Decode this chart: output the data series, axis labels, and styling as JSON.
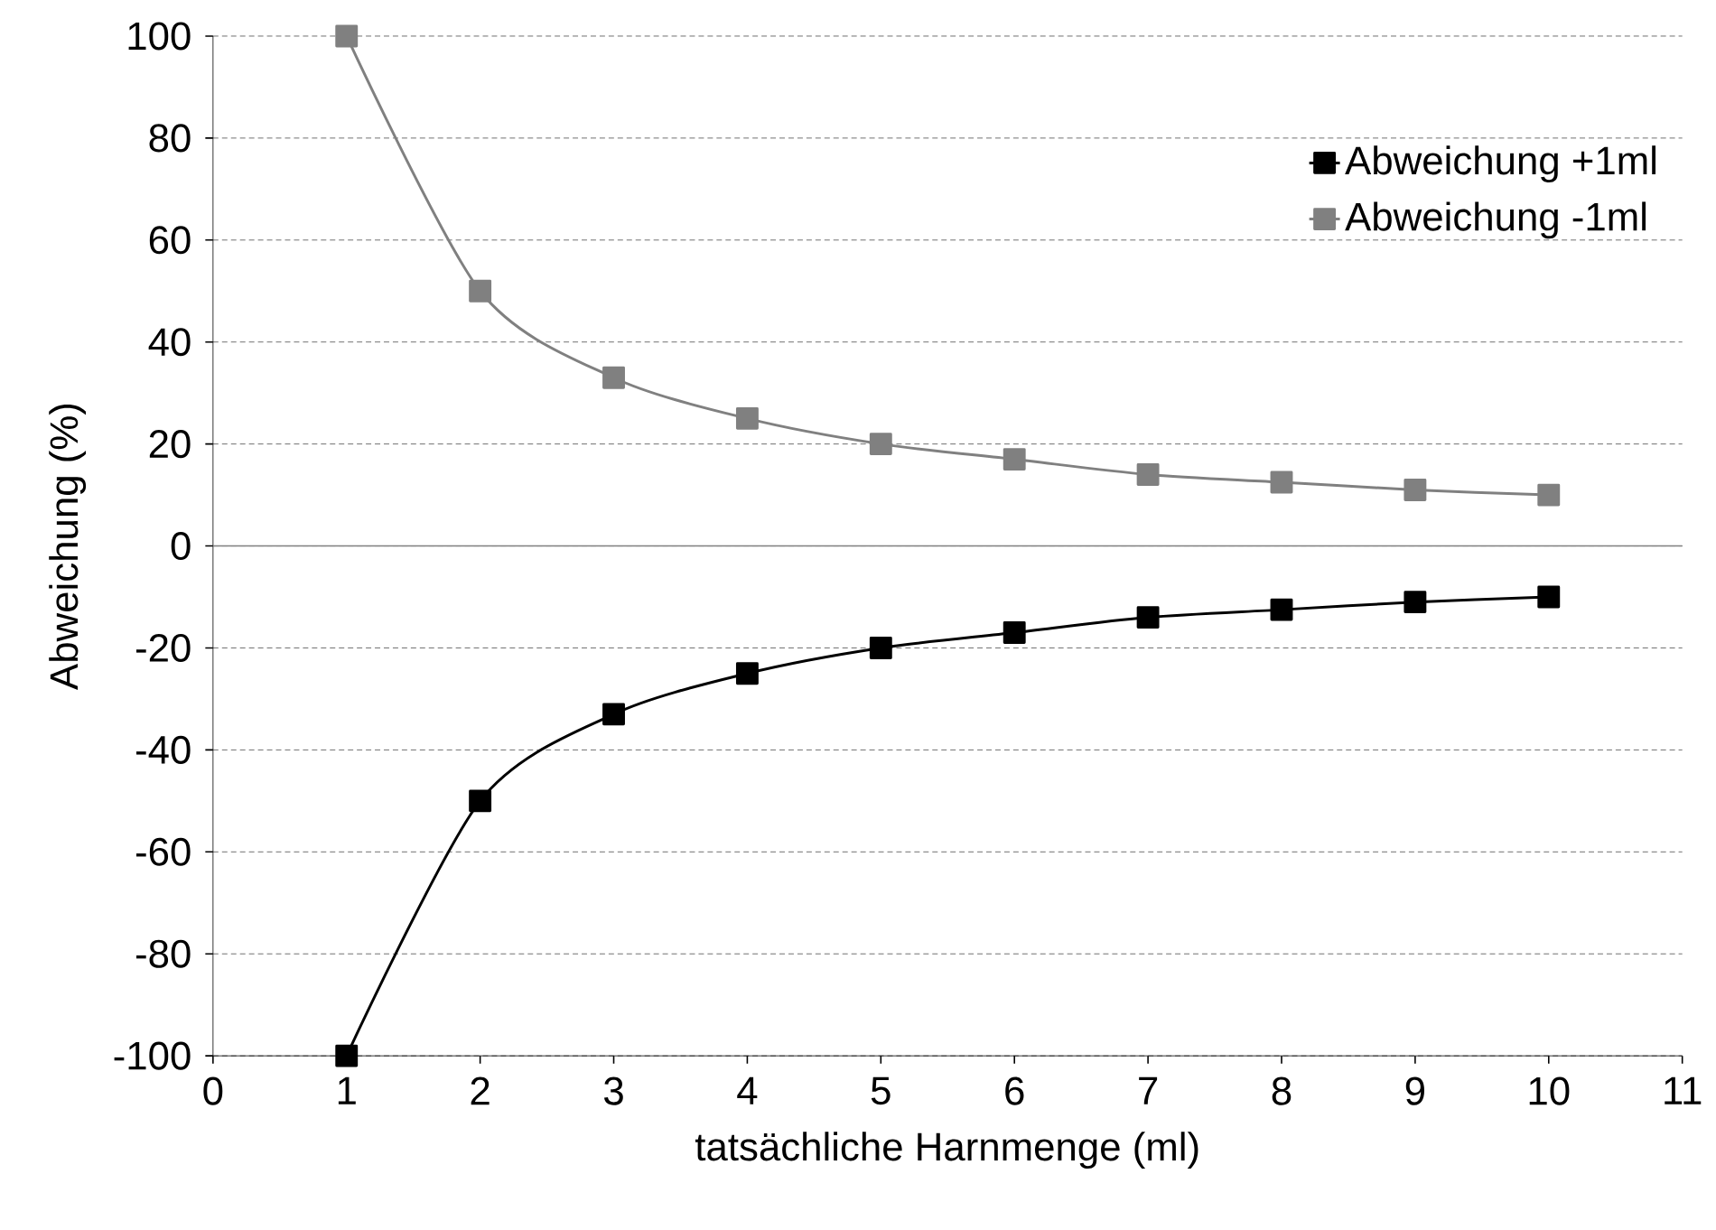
{
  "chart_data": {
    "type": "line",
    "xlabel": "tatsächliche Harnmenge (ml)",
    "ylabel": "Abweichung (%)",
    "x": [
      1,
      2,
      3,
      4,
      5,
      6,
      7,
      8,
      9,
      10
    ],
    "series": [
      {
        "name": "Abweichung +1ml",
        "color": "#000000",
        "values": [
          -100,
          -50,
          -33,
          -25,
          -20,
          -17,
          -14,
          -12.5,
          -11,
          -10
        ]
      },
      {
        "name": "Abweichung -1ml",
        "color": "#808080",
        "values": [
          100,
          50,
          33,
          25,
          20,
          17,
          14,
          12.5,
          11,
          10
        ]
      }
    ],
    "xlim": [
      0,
      11
    ],
    "xticks": [
      0,
      1,
      2,
      3,
      4,
      5,
      6,
      7,
      8,
      9,
      10,
      11
    ],
    "ylim": [
      -100,
      100
    ],
    "yticks": [
      -100,
      -80,
      -60,
      -40,
      -20,
      0,
      20,
      40,
      60,
      80,
      100
    ],
    "grid": "y",
    "legend": "top right",
    "marker": "square",
    "line_style": "solid",
    "ref_lines": [
      {
        "axis": "y",
        "value": 0,
        "color": "#808080"
      }
    ]
  }
}
